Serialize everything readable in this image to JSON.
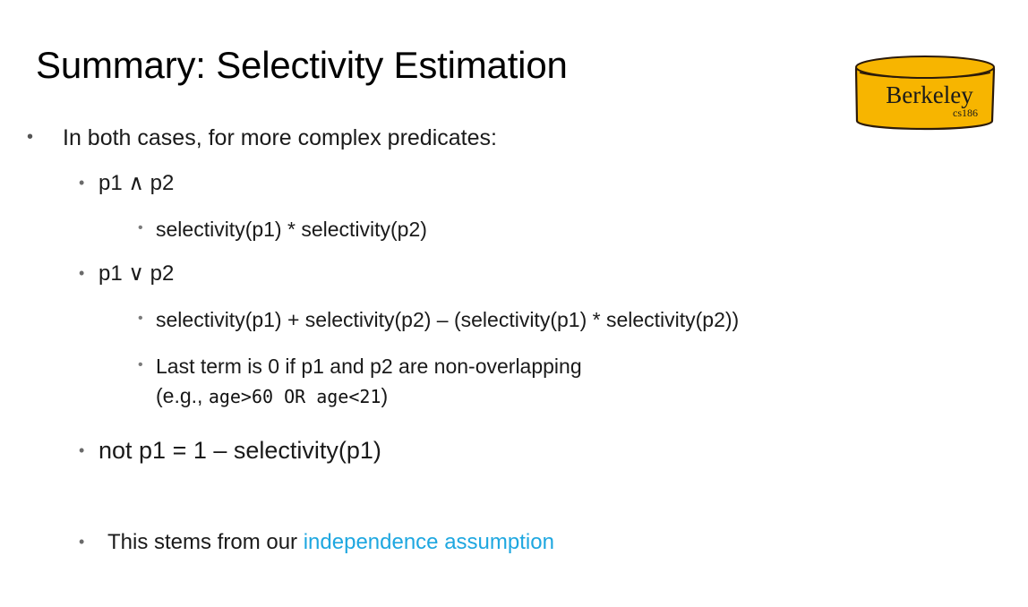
{
  "slide": {
    "title": "Summary: Selectivity Estimation",
    "logo": {
      "text": "Berkeley",
      "subtext": "cs186",
      "fill_color": "#f7b500",
      "stroke_color": "#2b1a0a"
    },
    "bullets": {
      "intro": "In both cases, for more complex predicates:",
      "and_label": "p1 ∧ p2",
      "and_formula": "selectivity(p1) * selectivity(p2)",
      "or_label": "p1 ∨ p2",
      "or_formula": "selectivity(p1) + selectivity(p2) – (selectivity(p1) * selectivity(p2))",
      "last_term_line1": "Last term is 0 if p1 and p2 are non-overlapping",
      "example_open": "(e.g., ",
      "example_code": "age>60 OR age<21",
      "example_close": ")",
      "not_formula": "not p1 = 1 – selectivity(p1)",
      "stems_prefix": "This stems from our ",
      "stems_link": "independence assumption"
    },
    "colors": {
      "link": "#1ea7e0",
      "text": "#1a1a1a"
    }
  }
}
